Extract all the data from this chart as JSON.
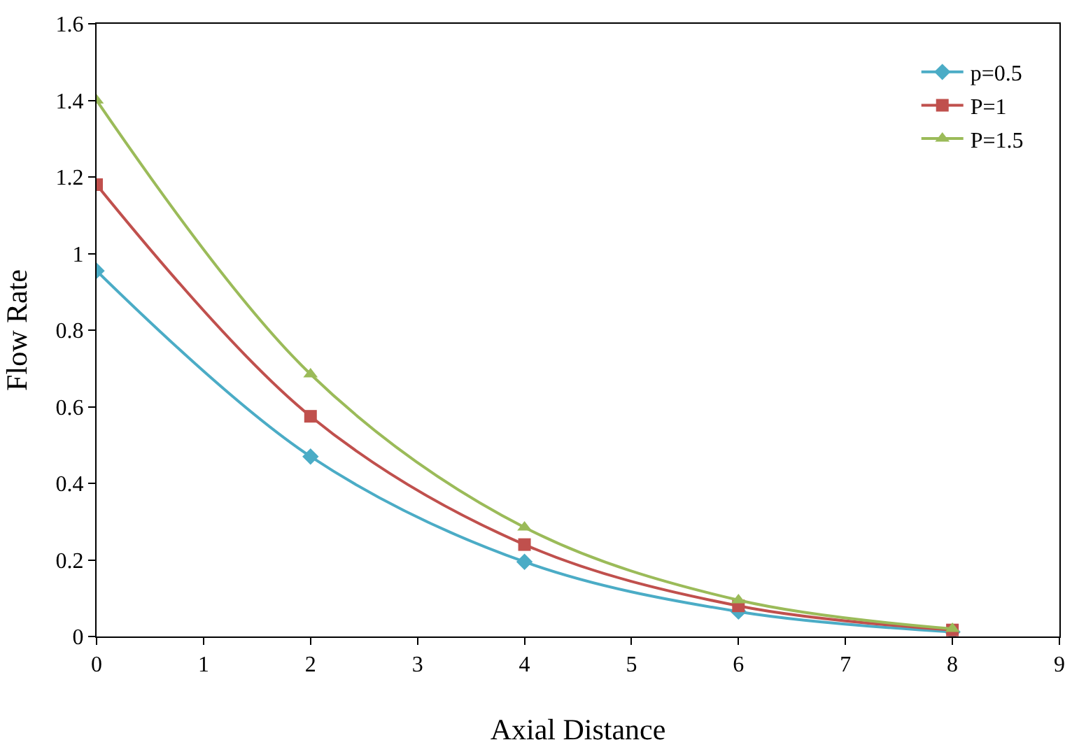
{
  "chart_data": {
    "type": "line",
    "xlabel": "Axial Distance",
    "ylabel": "Flow Rate",
    "x": [
      0,
      2,
      4,
      6,
      8
    ],
    "series": [
      {
        "name": "p=0.5",
        "color": "#4bacc6",
        "marker": "diamond",
        "values": [
          0.955,
          0.47,
          0.195,
          0.065,
          0.012
        ]
      },
      {
        "name": "P=1",
        "color": "#c0504d",
        "marker": "square",
        "values": [
          1.18,
          0.575,
          0.24,
          0.08,
          0.017
        ]
      },
      {
        "name": "P=1.5",
        "color": "#9bbb59",
        "marker": "triangle",
        "values": [
          1.4,
          0.685,
          0.285,
          0.095,
          0.02
        ]
      }
    ],
    "xlim": [
      0,
      9
    ],
    "xticks": [
      0,
      1,
      2,
      3,
      4,
      5,
      6,
      7,
      8,
      9
    ],
    "ylim": [
      0,
      1.6
    ],
    "yticks": [
      0,
      0.2,
      0.4,
      0.6,
      0.8,
      1,
      1.2,
      1.4,
      1.6
    ],
    "legend": "top right",
    "line_style": "solid"
  }
}
